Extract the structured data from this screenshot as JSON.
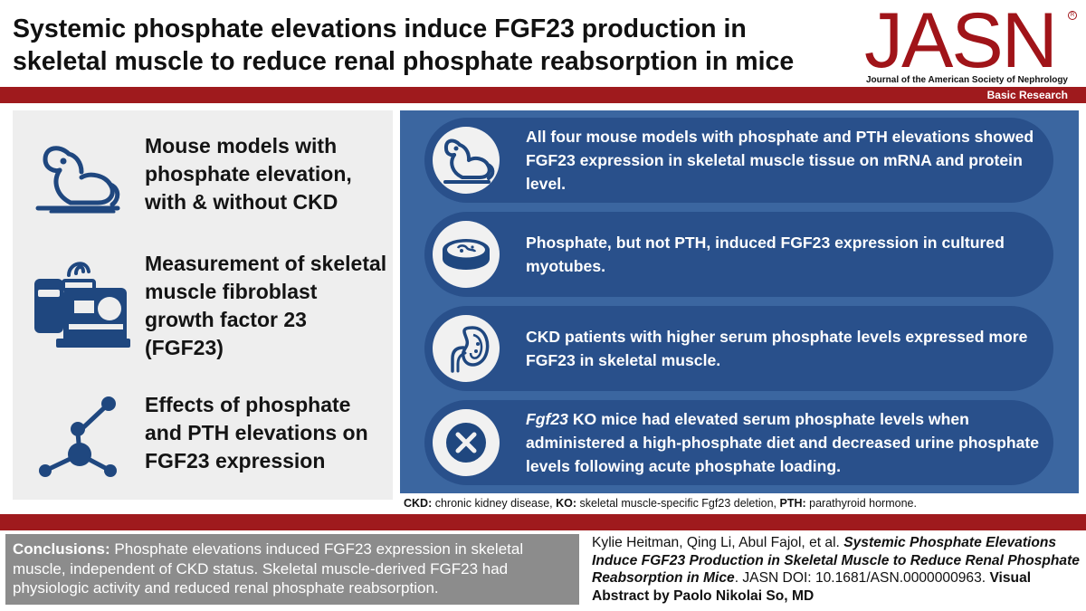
{
  "header": {
    "title": "Systemic phosphate elevations induce FGF23 production in skeletal muscle to reduce renal phosphate reabsorption in mice",
    "logo_text": "JASN",
    "logo_subtitle": "Journal of the American Society of Nephrology",
    "section_label": "Basic Research"
  },
  "left_items": [
    {
      "icon": "mouse-icon",
      "text": "Mouse models with phosphate elevation, with & without CKD"
    },
    {
      "icon": "lab-analyzer-icon",
      "text": "Measurement of skeletal muscle fibroblast growth factor 23 (FGF23)"
    },
    {
      "icon": "molecule-icon",
      "text": "Effects of phosphate and PTH elevations on FGF23 expression"
    }
  ],
  "findings": [
    {
      "icon": "mouse-icon",
      "text": "All four mouse models with phosphate and PTH elevations showed FGF23 expression in skeletal muscle tissue on mRNA and protein level."
    },
    {
      "icon": "petri-dish-icon",
      "text": "Phosphate, but not PTH, induced FGF23 expression in cultured myotubes."
    },
    {
      "icon": "kidney-icon",
      "text": "CKD patients with higher serum phosphate levels expressed more FGF23 in skeletal muscle."
    },
    {
      "icon": "x-mark-icon",
      "italic_prefix": "Fgf23",
      "text": " KO mice had elevated serum phosphate levels when administered a high-phosphate diet and decreased urine phosphate levels following acute phosphate loading."
    }
  ],
  "footnote": {
    "t1_label": "CKD:",
    "t1_text": " chronic kidney disease, ",
    "t2_label": "KO:",
    "t2_text": " skeletal muscle-specific Fgf23 deletion, ",
    "t3_label": "PTH:",
    "t3_text": " parathyroid hormone."
  },
  "conclusions": {
    "label": "Conclusions:",
    "text": " Phosphate elevations induced FGF23 expression in skeletal muscle, independent of CKD status. Skeletal muscle-derived FGF23 had physiologic activity and reduced renal phosphate reabsorption."
  },
  "citation": {
    "authors": "Kylie Heitman, Qing Li, Abul Fajol, et al. ",
    "article_title": "Systemic Phosphate Elevations Induce FGF23 Production in Skeletal Muscle to Reduce Renal Phosphate Reabsorption in Mice",
    "journal_doi": ". JASN DOI: 10.1681/ASN.0000000963. ",
    "credit": "Visual Abstract by Paolo Nikolai So, MD"
  },
  "colors": {
    "brand_red": "#9f1a1d",
    "panel_blue": "#3b66a0",
    "pill_blue": "#29508b",
    "icon_navy": "#1f477f",
    "conclusion_gray": "#8c8c8c"
  }
}
